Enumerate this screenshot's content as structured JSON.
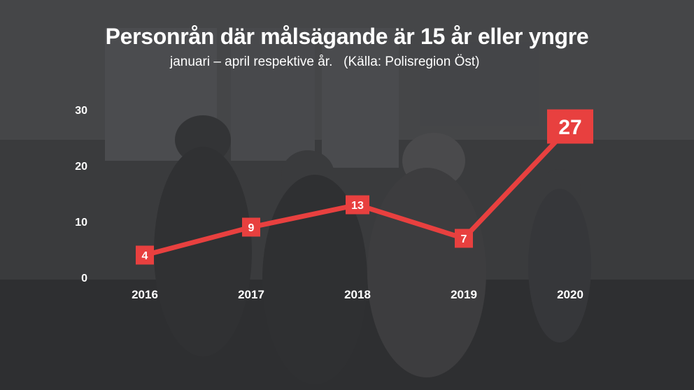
{
  "header": {
    "title": "Personrån där målsägande är 15 år eller yngre",
    "subtitle": "januari – april respektive år.   (Källa: Polisregion Öst)"
  },
  "colors": {
    "line": "#e8403f",
    "text": "#ffffff",
    "background": "#3b3c3e"
  },
  "background_image": "dark photo of teenagers in a schoolyard",
  "chart_data": {
    "type": "line",
    "title": "Personrån där målsägande är 15 år eller yngre",
    "subtitle": "januari – april respektive år.   (Källa: Polisregion Öst)",
    "categories": [
      "2016",
      "2017",
      "2018",
      "2019",
      "2020"
    ],
    "values": [
      4,
      9,
      13,
      7,
      27
    ],
    "data_labels": [
      "4",
      "9",
      "13",
      "7",
      "27"
    ],
    "highlight_index": 4,
    "ylim": [
      0,
      30
    ],
    "yticks": [
      0,
      10,
      20,
      30
    ],
    "ytick_labels": [
      "0",
      "10",
      "20",
      "30"
    ],
    "grid": false,
    "legend": "none"
  }
}
